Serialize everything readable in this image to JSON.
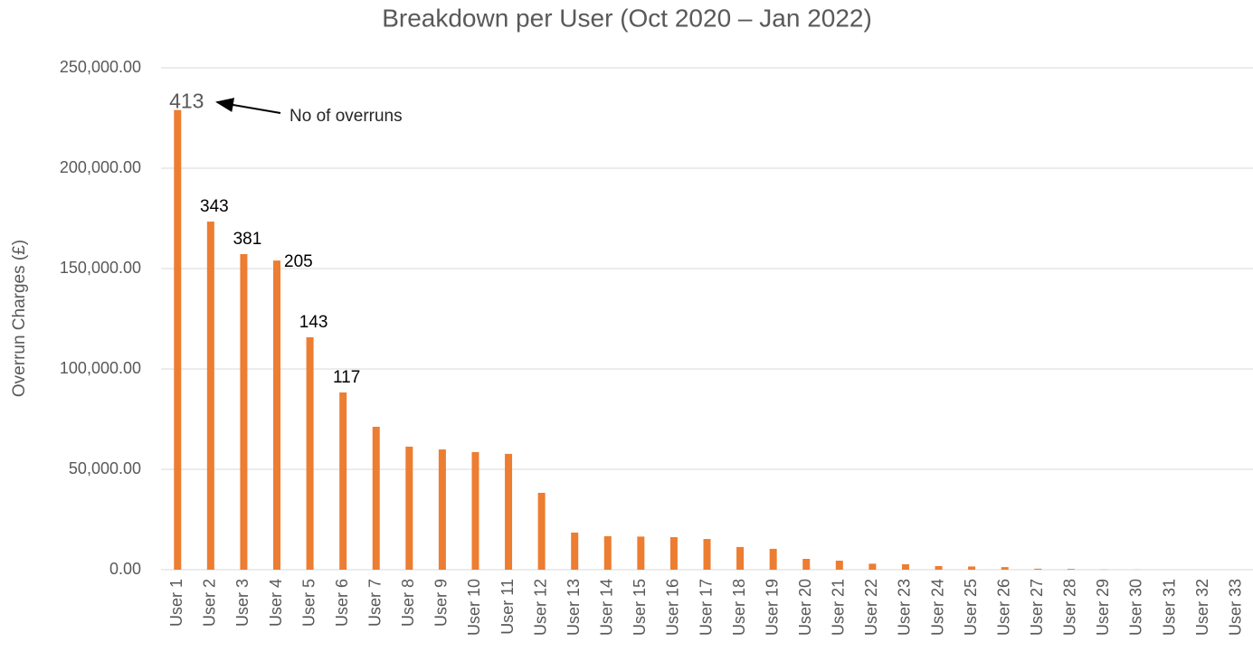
{
  "chart_data": {
    "type": "bar",
    "title": "Breakdown per User (Oct 2020 – Jan 2022)",
    "y_axis_label": "Overrun Charges (£)",
    "annotation": "No of overruns",
    "categories": [
      "User 1",
      "User 2",
      "User 3",
      "User 4",
      "User 5",
      "User 6",
      "User 7",
      "User 8",
      "User 9",
      "User 10",
      "User 11",
      "User 12",
      "User 13",
      "User 14",
      "User 15",
      "User 16",
      "User 17",
      "User 18",
      "User 19",
      "User 20",
      "User 21",
      "User 22",
      "User 23",
      "User 24",
      "User 25",
      "User 26",
      "User 27",
      "User 28",
      "User 29",
      "User 30",
      "User 31",
      "User 32",
      "User 33"
    ],
    "values": [
      229000,
      173400,
      157200,
      154000,
      115800,
      88300,
      71200,
      61300,
      59900,
      58600,
      57700,
      38300,
      18500,
      16700,
      16500,
      16200,
      15300,
      11300,
      10400,
      5400,
      4500,
      3000,
      2700,
      1800,
      1600,
      1300,
      500,
      400,
      100,
      50,
      0,
      0,
      0
    ],
    "overrun_counts": [
      413,
      343,
      381,
      205,
      143,
      117
    ],
    "color": "#ed7d31",
    "ylim": [
      0,
      250000
    ],
    "yticks": [
      {
        "value": 0,
        "label": "0.00"
      },
      {
        "value": 50000,
        "label": "50,000.00"
      },
      {
        "value": 100000,
        "label": "100,000.00"
      },
      {
        "value": 150000,
        "label": "150,000.00"
      },
      {
        "value": 200000,
        "label": "200,000.00"
      },
      {
        "value": 250000,
        "label": "250,000.00"
      }
    ],
    "grid": true
  }
}
